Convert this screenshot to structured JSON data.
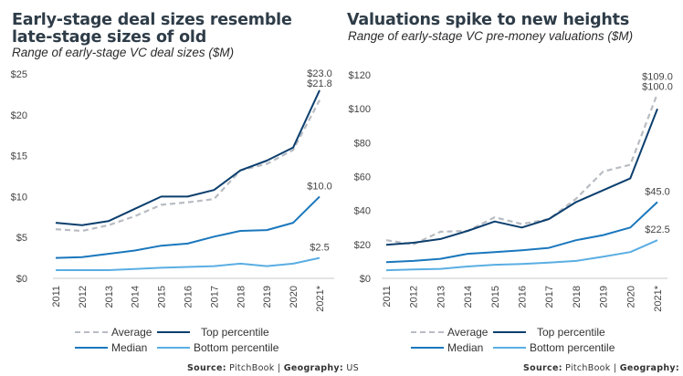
{
  "colors": {
    "average": "#b8bcc2",
    "top": "#0c3f6e",
    "median": "#1a77bd",
    "bottom": "#5aaee3",
    "axis": "#e3e3e3"
  },
  "legend": {
    "average": "Average",
    "top": "Top percentile",
    "median": "Median",
    "bottom": "Bottom percentile"
  },
  "source": {
    "source_label": "Source:",
    "source_value": "PitchBook",
    "separator": "|",
    "geo_label": "Geography:",
    "geo_value": "US"
  },
  "chart_data": [
    {
      "type": "line",
      "title": "Early-stage deal sizes resemble late-stage sizes of old",
      "subtitle": "Range of early-stage VC deal sizes ($M)",
      "xlabel": "",
      "ylabel": "",
      "categories": [
        "2011",
        "2012",
        "2013",
        "2014",
        "2015",
        "2016",
        "2017",
        "2018",
        "2019",
        "2020",
        "2021*"
      ],
      "ylim": [
        0,
        25
      ],
      "yticks": [
        0,
        5,
        10,
        15,
        20,
        25
      ],
      "ytick_labels": [
        "$0",
        "$5",
        "$10",
        "$15",
        "$20",
        "$25"
      ],
      "grid": false,
      "legend_position": "bottom",
      "series": [
        {
          "key": "average",
          "name": "Average",
          "style": "dashed",
          "values": [
            6.0,
            5.8,
            6.5,
            7.6,
            9.0,
            9.3,
            9.7,
            13.2,
            14.0,
            15.7,
            21.8
          ],
          "end_label": "$21.8"
        },
        {
          "key": "top",
          "name": "Top percentile",
          "style": "solid",
          "values": [
            6.8,
            6.5,
            7.0,
            8.5,
            10.0,
            10.0,
            10.8,
            13.2,
            14.4,
            16.0,
            23.0
          ],
          "end_label": "$23.0"
        },
        {
          "key": "median",
          "name": "Median",
          "style": "solid",
          "values": [
            2.5,
            2.6,
            3.0,
            3.4,
            4.0,
            4.25,
            5.1,
            5.8,
            5.9,
            6.8,
            10.0
          ],
          "end_label": "$10.0"
        },
        {
          "key": "bottom",
          "name": "Bottom percentile",
          "style": "solid",
          "values": [
            1.0,
            1.0,
            1.0,
            1.15,
            1.3,
            1.4,
            1.5,
            1.8,
            1.5,
            1.8,
            2.5
          ],
          "end_label": "$2.5"
        }
      ]
    },
    {
      "type": "line",
      "title": "Valuations spike to new heights",
      "subtitle": "Range of early-stage VC pre-money valuations ($M)",
      "xlabel": "",
      "ylabel": "",
      "categories": [
        "2011",
        "2012",
        "2013",
        "2014",
        "2015",
        "2016",
        "2017",
        "2018",
        "2019",
        "2020",
        "2021*"
      ],
      "ylim": [
        0,
        120
      ],
      "yticks": [
        0,
        20,
        40,
        60,
        80,
        100,
        120
      ],
      "ytick_labels": [
        "$0",
        "$20",
        "$40",
        "$60",
        "$80",
        "$100",
        "$120"
      ],
      "grid": false,
      "legend_position": "bottom",
      "series": [
        {
          "key": "average",
          "name": "Average",
          "style": "dashed",
          "values": [
            22.5,
            20.0,
            27.5,
            28.0,
            36.0,
            32.0,
            35.0,
            47.0,
            63.0,
            67.0,
            109.0
          ],
          "end_label": "$109.0"
        },
        {
          "key": "top",
          "name": "Top percentile",
          "style": "solid",
          "values": [
            19.8,
            21.0,
            23.2,
            28.0,
            33.5,
            30.0,
            35.0,
            45.0,
            52.0,
            59.0,
            100.0
          ],
          "end_label": "$100.0"
        },
        {
          "key": "median",
          "name": "Median",
          "style": "solid",
          "values": [
            9.5,
            10.3,
            11.5,
            14.5,
            15.5,
            16.6,
            18.0,
            22.5,
            25.5,
            30.0,
            45.0
          ],
          "end_label": "$45.0"
        },
        {
          "key": "bottom",
          "name": "Bottom percentile",
          "style": "solid",
          "values": [
            4.8,
            5.2,
            5.6,
            7.0,
            8.0,
            8.5,
            9.3,
            10.3,
            12.8,
            15.5,
            22.5
          ],
          "end_label": "$22.5"
        }
      ]
    }
  ]
}
